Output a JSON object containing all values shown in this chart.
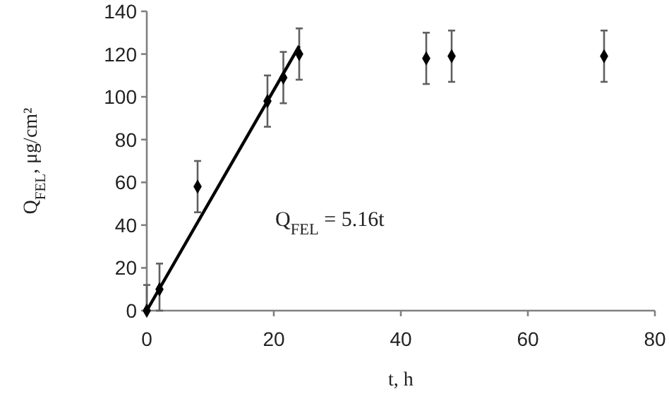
{
  "chart_data": {
    "type": "scatter",
    "xlabel": "t, h",
    "ylabel": "Q$_{FEL}$, μg/cm²",
    "xlim": [
      0,
      80
    ],
    "ylim": [
      0,
      140
    ],
    "xticks": [
      0,
      20,
      40,
      60,
      80
    ],
    "yticks": [
      0,
      20,
      40,
      60,
      80,
      100,
      120,
      140
    ],
    "grid": false,
    "marker": "diamond",
    "annotations": [
      "Q$_{FEL}$ = 5.16t"
    ],
    "series": [
      {
        "color": "#000000",
        "x": [
          0,
          2,
          8,
          19,
          21.5,
          24,
          44,
          48,
          72
        ],
        "values": [
          0,
          10,
          58,
          98,
          109,
          120,
          118,
          119,
          119
        ],
        "errors": [
          [
            0,
            12
          ],
          [
            0,
            22
          ],
          12,
          12,
          12,
          12,
          12,
          12,
          12
        ]
      },
      {
        "type": "line",
        "color": "#000000",
        "x": [
          0,
          24
        ],
        "values": [
          0,
          123.8
        ],
        "marker": "none",
        "line_style": "solid"
      }
    ]
  }
}
